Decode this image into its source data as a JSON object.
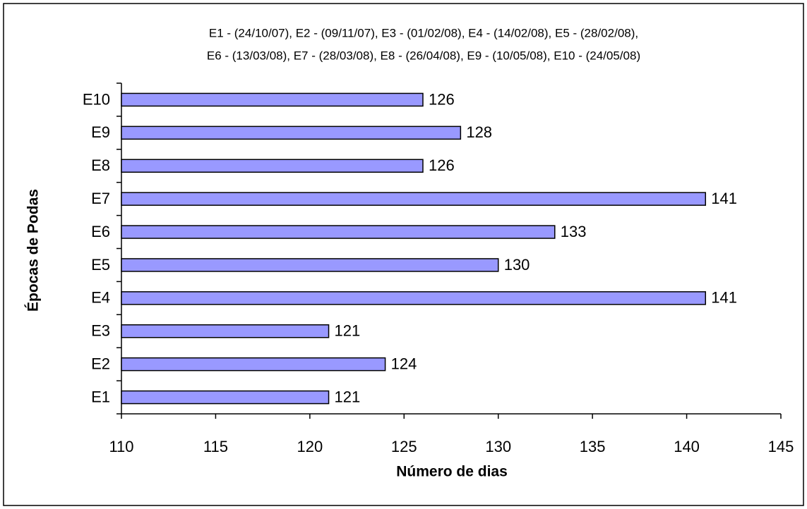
{
  "chart_data": {
    "type": "barh",
    "subtitle_lines": [
      "E1 - (24/10/07), E2 - (09/11/07), E3 - (01/02/08), E4 - (14/02/08), E5 - (28/02/08),",
      "E6 - (13/03/08), E7 - (28/03/08), E8 - (26/04/08), E9 - (10/05/08), E10 - (24/05/08)"
    ],
    "x_label": "Número de dias",
    "y_label": "Épocas de Podas",
    "categories": [
      "E1",
      "E2",
      "E3",
      "E4",
      "E5",
      "E6",
      "E7",
      "E8",
      "E9",
      "E10"
    ],
    "values": [
      121,
      124,
      121,
      141,
      130,
      133,
      141,
      126,
      128,
      126
    ],
    "color": "#9999ff",
    "xlim": [
      110,
      145
    ],
    "xticks": [
      110,
      115,
      120,
      125,
      130,
      135,
      140,
      145
    ],
    "grid": false
  }
}
